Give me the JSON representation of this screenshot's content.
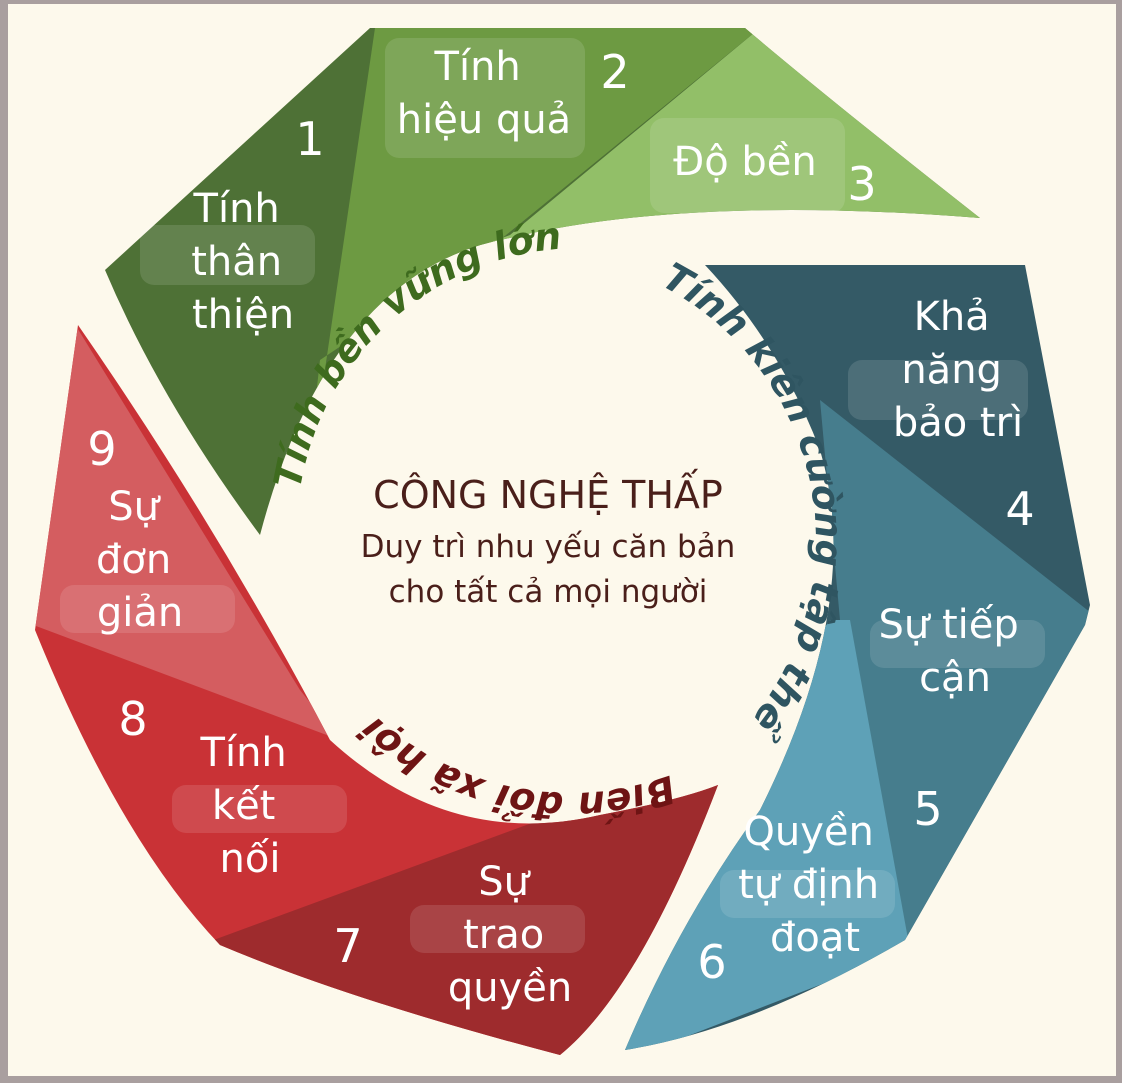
{
  "colors": {
    "background": "#fdf9ec",
    "frame": "#a99f9f",
    "green_dark": "#4e7136",
    "green_mid": "#6d9a42",
    "green_light": "#92bf68",
    "teal_dark": "#345a66",
    "teal_mid": "#467d8d",
    "teal_light": "#5ea1b7",
    "red_light": "#d45d60",
    "red_mid": "#c93236",
    "red_dark": "#9e2b2d",
    "arc_green": "#3e6b1e",
    "arc_teal": "#2f5561",
    "arc_red": "#6e1414",
    "center_text": "#4a1f1a"
  },
  "center": {
    "title": "CÔNG NGHỆ THẤP",
    "line1": "Duy trì nhu yếu căn bản",
    "line2": "cho tất cả mọi người"
  },
  "arcs": {
    "sustainability": "Tính bền vững lớn",
    "resilience": "Tính kiên cường tập thể",
    "social": "Biến đổi xã hội"
  },
  "segments": [
    {
      "number": "1",
      "label_lines": [
        "Tính",
        "thân",
        "thiện"
      ],
      "icon": "none"
    },
    {
      "number": "2",
      "label_lines": [
        "Tính",
        "hiệu quả"
      ],
      "icon": "none"
    },
    {
      "number": "3",
      "label_lines": [
        "Độ bền"
      ],
      "icon": "none"
    },
    {
      "number": "4",
      "label_lines": [
        "Khả",
        "năng",
        "bảo trì"
      ],
      "icon": "none"
    },
    {
      "number": "5",
      "label_lines": [
        "Sự tiếp",
        "cận"
      ],
      "icon": "none"
    },
    {
      "number": "6",
      "label_lines": [
        "Quyền",
        "tự định",
        "đoạt"
      ],
      "icon": "none"
    },
    {
      "number": "7",
      "label_lines": [
        "Sự",
        "trao",
        "quyền"
      ],
      "icon": "none"
    },
    {
      "number": "8",
      "label_lines": [
        "Tính",
        "kết",
        "nối"
      ],
      "icon": "none"
    },
    {
      "number": "9",
      "label_lines": [
        "Sự",
        "đơn",
        "giản"
      ],
      "icon": "none"
    }
  ]
}
